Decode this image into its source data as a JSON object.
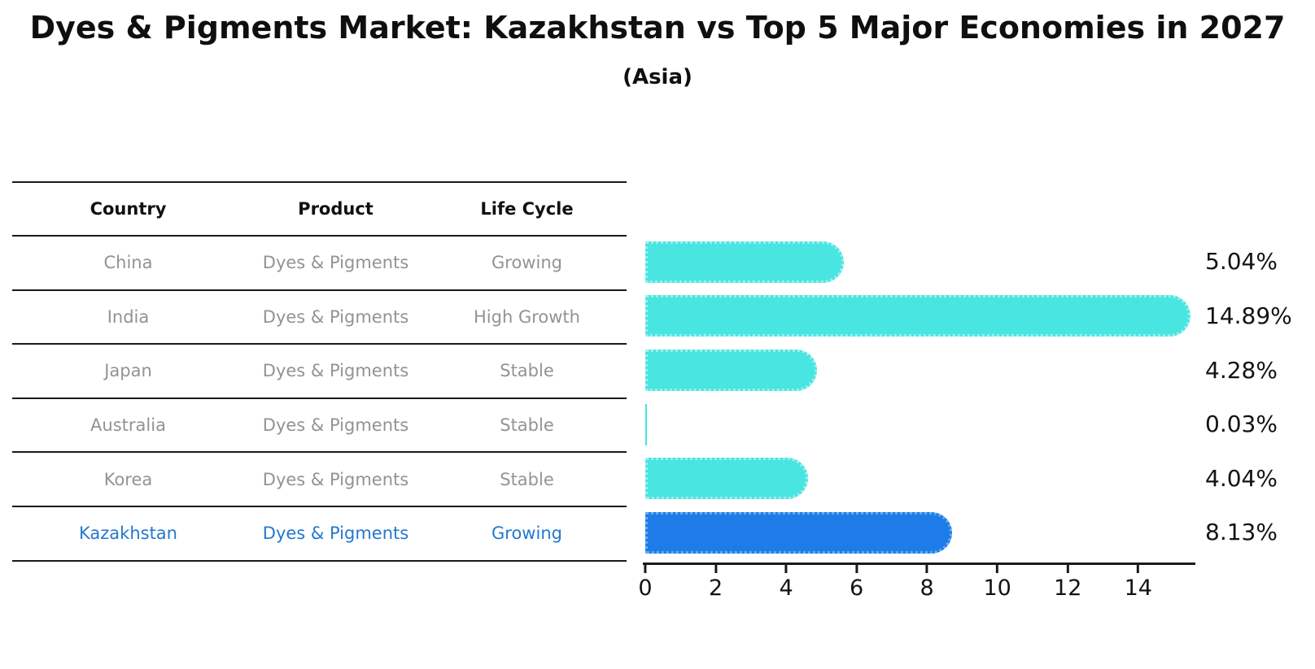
{
  "title": "Dyes & Pigments Market: Kazakhstan vs Top 5 Major Economies in 2027",
  "subtitle": "(Asia)",
  "table": {
    "headers": [
      "Country",
      "Product",
      "Life Cycle"
    ],
    "rows": [
      {
        "country": "China",
        "product": "Dyes & Pigments",
        "life_cycle": "Growing",
        "highlight": false
      },
      {
        "country": "India",
        "product": "Dyes & Pigments",
        "life_cycle": "High Growth",
        "highlight": false
      },
      {
        "country": "Japan",
        "product": "Dyes & Pigments",
        "life_cycle": "Stable",
        "highlight": false
      },
      {
        "country": "Australia",
        "product": "Dyes & Pigments",
        "life_cycle": "Stable",
        "highlight": false
      },
      {
        "country": "Korea",
        "product": "Dyes & Pigments",
        "life_cycle": "Stable",
        "highlight": false
      },
      {
        "country": "Kazakhstan",
        "product": "Dyes & Pigments",
        "life_cycle": "Growing",
        "highlight": true
      }
    ]
  },
  "chart_data": {
    "type": "bar",
    "orientation": "horizontal",
    "title": "Dyes & Pigments Market: Kazakhstan vs Top 5 Major Economies in 2027",
    "subtitle": "(Asia)",
    "categories": [
      "China",
      "India",
      "Japan",
      "Australia",
      "Korea",
      "Kazakhstan"
    ],
    "values": [
      5.04,
      14.89,
      4.28,
      0.03,
      4.04,
      8.13
    ],
    "value_labels": [
      "5.04%",
      "14.89%",
      "4.28%",
      "0.03%",
      "4.04%",
      "8.13%"
    ],
    "xlabel": "",
    "ylabel": "",
    "xlim": [
      0,
      15.6
    ],
    "x_ticks": [
      0,
      2,
      4,
      6,
      8,
      10,
      12,
      14
    ],
    "grid": false,
    "legend": false,
    "highlight_index": 5,
    "colors": {
      "bar": "#48e5e1",
      "bar_edge": "#9bf0ec",
      "highlight_bar": "#1e7ce8",
      "highlight_edge": "#62aef2",
      "value_text": "#131313",
      "table_text": "#939393",
      "highlight_text": "#2478cf"
    }
  }
}
